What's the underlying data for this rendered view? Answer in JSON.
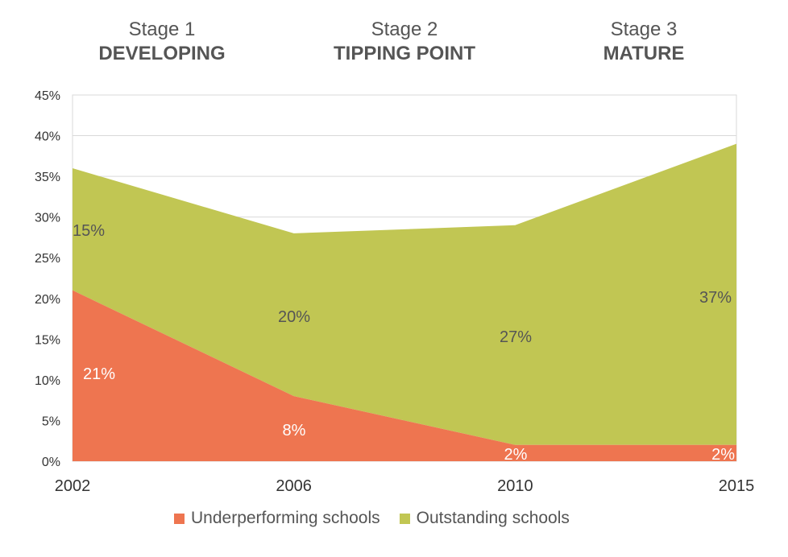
{
  "stages": [
    {
      "number": "Stage 1",
      "name": "DEVELOPING"
    },
    {
      "number": "Stage 2",
      "name": "TIPPING POINT"
    },
    {
      "number": "Stage 3",
      "name": "MATURE"
    }
  ],
  "colors": {
    "underperforming": "#ee7550",
    "outstanding": "#c1c653",
    "axis_text": "#333333",
    "grid": "#d9d9d9"
  },
  "chart_data": {
    "type": "area",
    "stacked": true,
    "x": [
      "2002",
      "2006",
      "2010",
      "2015"
    ],
    "series": [
      {
        "name": "Underperforming schools",
        "values": [
          21,
          8,
          2,
          2
        ],
        "labels": [
          "21%",
          "8%",
          "2%",
          "2%"
        ]
      },
      {
        "name": "Outstanding schools",
        "values": [
          15,
          20,
          27,
          37
        ],
        "labels": [
          "15%",
          "20%",
          "27%",
          "37%"
        ]
      }
    ],
    "yticks": [
      "0%",
      "5%",
      "10%",
      "15%",
      "20%",
      "25%",
      "30%",
      "35%",
      "40%",
      "45%"
    ],
    "ylim": [
      0,
      45
    ],
    "grid": true,
    "legend": "bottom"
  }
}
